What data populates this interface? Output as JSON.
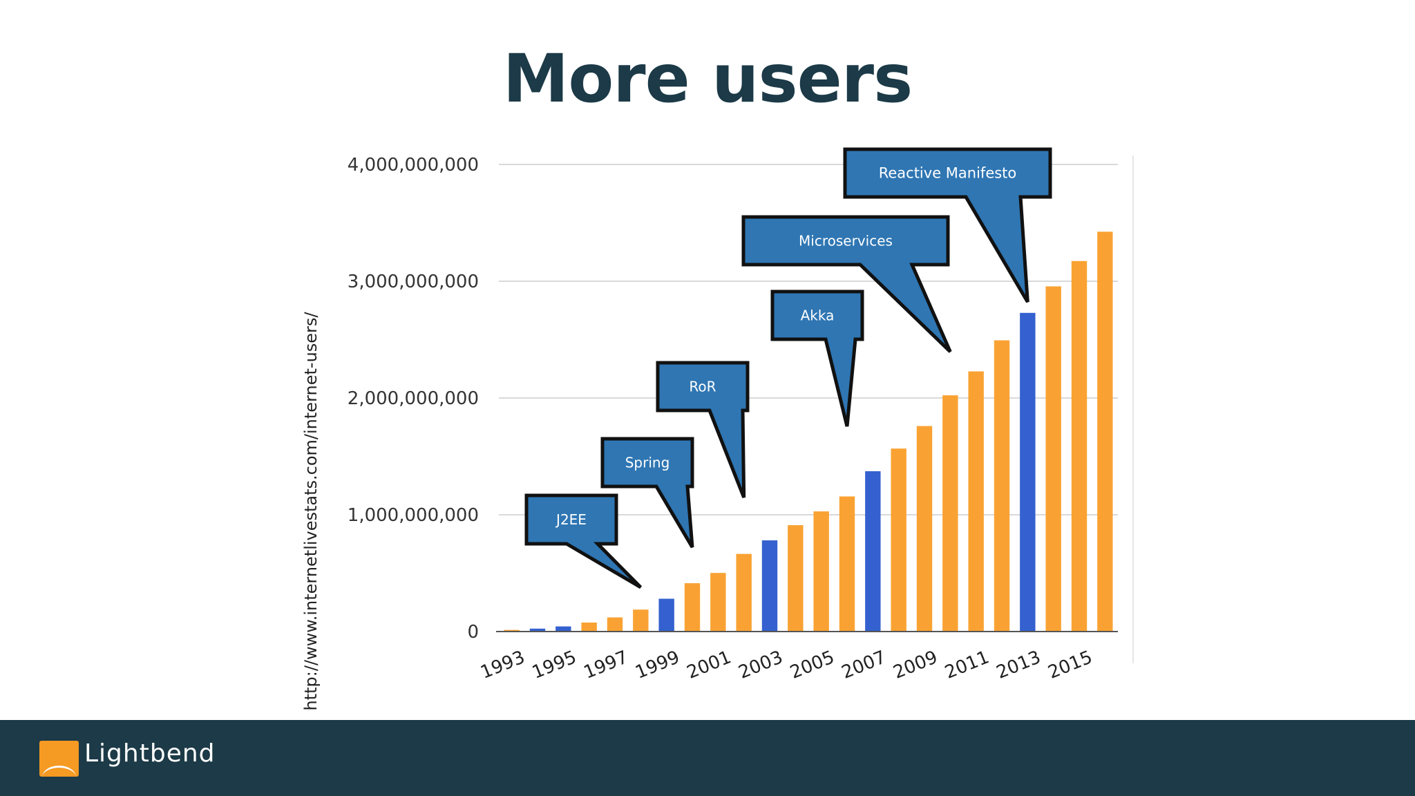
{
  "slide": {
    "title": "More users",
    "source": "http://www.internetlivestats.com/internet-users/"
  },
  "footer": {
    "logo_text": "Lightbend"
  },
  "colors": {
    "orange": "#f9a233",
    "blue": "#3461cf",
    "callout": "#2f76b3",
    "grid": "#d9d9d9",
    "title": "#1c3a47"
  },
  "chart_data": {
    "type": "bar",
    "title": "",
    "xlabel": "",
    "ylabel": "",
    "ylim": [
      0,
      4000000000
    ],
    "yticks": [
      0,
      1000000000,
      2000000000,
      3000000000,
      4000000000
    ],
    "ytick_labels": [
      "0",
      "1,000,000,000",
      "2,000,000,000",
      "3,000,000,000",
      "4,000,000,000"
    ],
    "categories": [
      1993,
      1994,
      1995,
      1996,
      1997,
      1998,
      1999,
      2000,
      2001,
      2002,
      2003,
      2004,
      2005,
      2006,
      2007,
      2008,
      2009,
      2010,
      2011,
      2012,
      2013,
      2014,
      2015,
      2016
    ],
    "xtick_labels": [
      "1993",
      "1995",
      "1997",
      "1999",
      "2001",
      "2003",
      "2005",
      "2007",
      "2009",
      "2011",
      "2013",
      "2015"
    ],
    "values": [
      14000000,
      25000000,
      44000000,
      77000000,
      121000000,
      188000000,
      281000000,
      414000000,
      502000000,
      665000000,
      781000000,
      911000000,
      1029000000,
      1157000000,
      1373000000,
      1567000000,
      1760000000,
      2023000000,
      2228000000,
      2494000000,
      2729000000,
      2956000000,
      3173000000,
      3424000000
    ],
    "highlight_years": [
      1994,
      1995,
      1999,
      2003,
      2007,
      2013
    ],
    "grid": true,
    "legend": "none",
    "annotations": [
      {
        "label": "J2EE",
        "year": 1998
      },
      {
        "label": "Spring",
        "year": 2000
      },
      {
        "label": "RoR",
        "year": 2002
      },
      {
        "label": "Akka",
        "year": 2006
      },
      {
        "label": "Microservices",
        "year": 2010
      },
      {
        "label": "Reactive Manifesto",
        "year": 2013
      }
    ]
  }
}
